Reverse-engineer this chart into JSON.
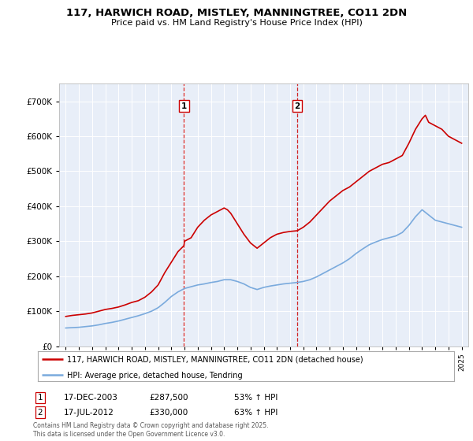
{
  "title": "117, HARWICH ROAD, MISTLEY, MANNINGTREE, CO11 2DN",
  "subtitle": "Price paid vs. HM Land Registry's House Price Index (HPI)",
  "legend_house": "117, HARWICH ROAD, MISTLEY, MANNINGTREE, CO11 2DN (detached house)",
  "legend_hpi": "HPI: Average price, detached house, Tendring",
  "footnote": "Contains HM Land Registry data © Crown copyright and database right 2025.\nThis data is licensed under the Open Government Licence v3.0.",
  "sale1_label": "1",
  "sale1_date": "17-DEC-2003",
  "sale1_price": "£287,500",
  "sale1_pct": "53% ↑ HPI",
  "sale2_label": "2",
  "sale2_date": "17-JUL-2012",
  "sale2_price": "£330,000",
  "sale2_pct": "63% ↑ HPI",
  "house_color": "#cc0000",
  "hpi_color": "#7aaadd",
  "vline_color": "#cc0000",
  "background_color": "#e8eef8",
  "ylim_min": 0,
  "ylim_max": 750000,
  "sale1_x": 2003.96,
  "sale2_x": 2012.54,
  "house_x": [
    1995,
    1995.5,
    1996,
    1996.5,
    1997,
    1997.5,
    1998,
    1998.5,
    1999,
    1999.5,
    2000,
    2000.5,
    2001,
    2001.5,
    2002,
    2002.5,
    2003,
    2003.5,
    2003.96,
    2004,
    2004.5,
    2005,
    2005.5,
    2006,
    2006.5,
    2007,
    2007.25,
    2007.5,
    2008,
    2008.5,
    2009,
    2009.5,
    2010,
    2010.5,
    2011,
    2011.5,
    2012,
    2012.54,
    2013,
    2013.5,
    2014,
    2014.5,
    2015,
    2015.5,
    2016,
    2016.5,
    2017,
    2017.5,
    2018,
    2018.5,
    2019,
    2019.5,
    2020,
    2020.5,
    2021,
    2021.5,
    2022,
    2022.25,
    2022.5,
    2023,
    2023.5,
    2024,
    2024.5,
    2025
  ],
  "house_y": [
    85000,
    88000,
    90000,
    92000,
    95000,
    100000,
    105000,
    108000,
    112000,
    118000,
    125000,
    130000,
    140000,
    155000,
    175000,
    210000,
    240000,
    270000,
    287500,
    300000,
    310000,
    340000,
    360000,
    375000,
    385000,
    395000,
    390000,
    380000,
    350000,
    320000,
    295000,
    280000,
    295000,
    310000,
    320000,
    325000,
    328000,
    330000,
    340000,
    355000,
    375000,
    395000,
    415000,
    430000,
    445000,
    455000,
    470000,
    485000,
    500000,
    510000,
    520000,
    525000,
    535000,
    545000,
    580000,
    620000,
    650000,
    660000,
    640000,
    630000,
    620000,
    600000,
    590000,
    580000
  ],
  "hpi_x": [
    1995,
    1995.5,
    1996,
    1996.5,
    1997,
    1997.5,
    1998,
    1998.5,
    1999,
    1999.5,
    2000,
    2000.5,
    2001,
    2001.5,
    2002,
    2002.5,
    2003,
    2003.5,
    2004,
    2004.5,
    2005,
    2005.5,
    2006,
    2006.5,
    2007,
    2007.5,
    2008,
    2008.5,
    2009,
    2009.5,
    2010,
    2010.5,
    2011,
    2011.5,
    2012,
    2012.5,
    2013,
    2013.5,
    2014,
    2014.5,
    2015,
    2015.5,
    2016,
    2016.5,
    2017,
    2017.5,
    2018,
    2018.5,
    2019,
    2019.5,
    2020,
    2020.5,
    2021,
    2021.5,
    2022,
    2022.5,
    2023,
    2023.5,
    2024,
    2024.5,
    2025
  ],
  "hpi_y": [
    52000,
    53000,
    54000,
    56000,
    58000,
    61000,
    65000,
    68000,
    72000,
    77000,
    82000,
    87000,
    93000,
    100000,
    110000,
    125000,
    142000,
    155000,
    165000,
    170000,
    175000,
    178000,
    182000,
    185000,
    190000,
    190000,
    185000,
    178000,
    168000,
    162000,
    168000,
    172000,
    175000,
    178000,
    180000,
    182000,
    185000,
    190000,
    198000,
    208000,
    218000,
    228000,
    238000,
    250000,
    265000,
    278000,
    290000,
    298000,
    305000,
    310000,
    315000,
    325000,
    345000,
    370000,
    390000,
    375000,
    360000,
    355000,
    350000,
    345000,
    340000
  ]
}
